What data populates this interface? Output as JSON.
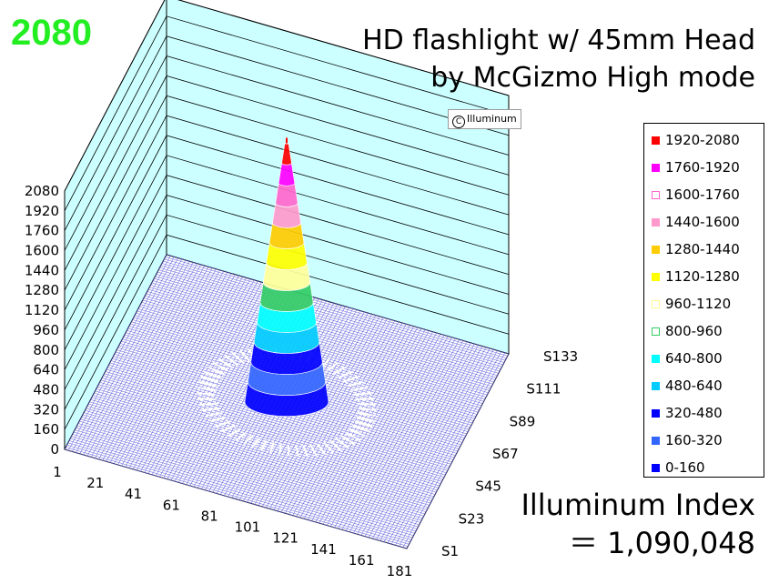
{
  "peak_value": "2080",
  "title": {
    "line1": "HD flashlight w/ 45mm Head",
    "line2": "by McGizmo  High mode"
  },
  "copyright_text": "Illuminum",
  "index": {
    "line1": "Illuminum Index",
    "line2": "＝ 1,090,048"
  },
  "chart_data": {
    "type": "surface3d",
    "description_source": "3D beam intensity surface",
    "z_ticks": [
      "0",
      "160",
      "320",
      "480",
      "640",
      "800",
      "960",
      "1120",
      "1280",
      "1440",
      "1600",
      "1760",
      "1920",
      "2080"
    ],
    "x_ticks": [
      "1",
      "21",
      "41",
      "61",
      "81",
      "101",
      "121",
      "141",
      "161",
      "181"
    ],
    "y_ticks": [
      "S1",
      "S23",
      "S45",
      "S67",
      "S89",
      "S111",
      "S133"
    ],
    "zlim": [
      0,
      2080
    ],
    "xlim": [
      1,
      181
    ],
    "peak": 2080,
    "peak_position": {
      "x": 91,
      "y": 67
    },
    "legend": [
      {
        "label": "1920-2080",
        "color": "#ff0000",
        "hollow": false
      },
      {
        "label": "1760-1920",
        "color": "#ff00ff",
        "hollow": false
      },
      {
        "label": "1600-1760",
        "color": "#ff66cc",
        "hollow": true
      },
      {
        "label": "1440-1600",
        "color": "#ff99cc",
        "hollow": false
      },
      {
        "label": "1280-1440",
        "color": "#ffcc00",
        "hollow": false
      },
      {
        "label": "1120-1280",
        "color": "#ffff00",
        "hollow": false
      },
      {
        "label": "960-1120",
        "color": "#ffff99",
        "hollow": true
      },
      {
        "label": "800-960",
        "color": "#33cc66",
        "hollow": true
      },
      {
        "label": "640-800",
        "color": "#00ffff",
        "hollow": false
      },
      {
        "label": "480-640",
        "color": "#00ccff",
        "hollow": false
      },
      {
        "label": "320-480",
        "color": "#0000ff",
        "hollow": false
      },
      {
        "label": "160-320",
        "color": "#3366ff",
        "hollow": false
      },
      {
        "label": "0-160",
        "color": "#0000ff",
        "hollow": false
      }
    ]
  }
}
